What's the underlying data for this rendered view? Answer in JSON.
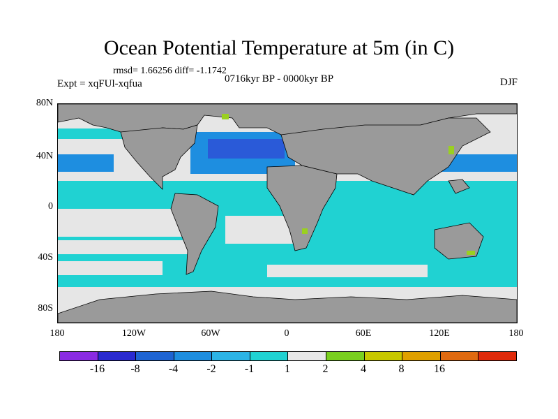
{
  "title": "Ocean Potential Temperature at 5m (in C)",
  "stats": "rmsd= 1.66256 diff= -1.1742",
  "experiment": "Expt = xqFUl-xqfua",
  "period": "0716kyr BP - 0000kyr BP",
  "season": "DJF",
  "y_ticks": [
    "80N",
    "40N",
    "0",
    "40S",
    "80S"
  ],
  "x_ticks": [
    "180",
    "120W",
    "60W",
    "0",
    "60E",
    "120E",
    "180"
  ],
  "colorbar": {
    "colors": [
      "#8a2be2",
      "#2a2ad0",
      "#1e64d2",
      "#1e8ee0",
      "#2cb4e6",
      "#20d2d2",
      "#e8e8e8",
      "#7ad020",
      "#c8c800",
      "#e0a000",
      "#e06a10",
      "#e02a0a"
    ],
    "labels": [
      "-16",
      "-8",
      "-4",
      "-2",
      "-1",
      "1",
      "2",
      "4",
      "8",
      "16"
    ]
  },
  "map_colors": {
    "land": "#9a9a9a",
    "ocean_neutral": "#e6e6e6",
    "ocean_cool": "#20d2d2",
    "ocean_mid": "#1e8ee0",
    "ocean_deep": "#2a5ad8",
    "ocean_warm": "#9ad020"
  }
}
